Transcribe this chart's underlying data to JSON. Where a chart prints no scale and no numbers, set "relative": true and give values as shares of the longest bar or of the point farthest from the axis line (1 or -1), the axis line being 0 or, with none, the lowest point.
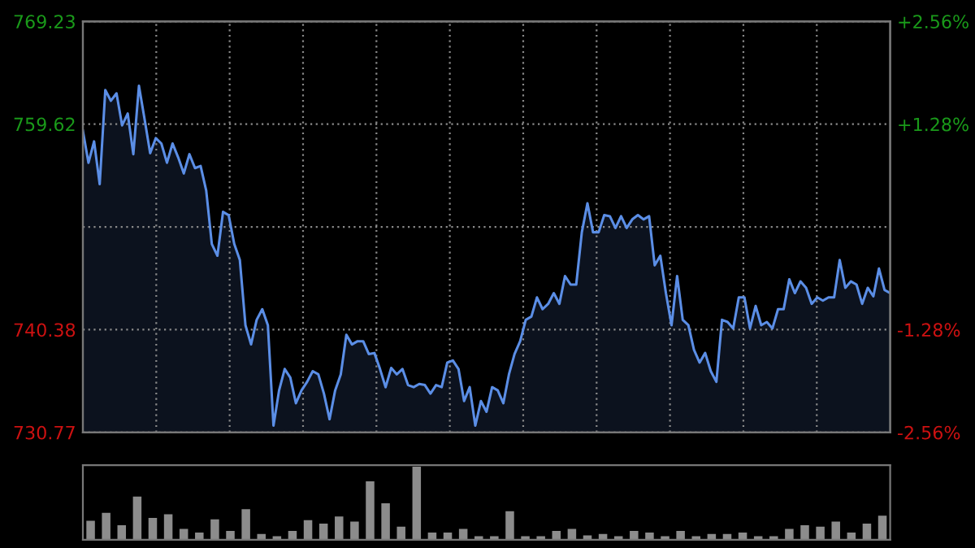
{
  "chart_data": [
    {
      "type": "area",
      "categories": [
        null,
        null,
        null,
        null,
        null,
        null,
        null,
        null,
        null,
        null,
        null,
        null,
        null,
        null,
        null,
        null,
        null,
        null,
        null,
        null,
        null,
        null,
        null,
        null,
        null,
        null,
        null,
        null,
        null,
        null,
        null,
        null,
        null,
        null,
        null,
        null,
        null,
        null,
        null,
        null,
        null,
        null,
        null,
        null,
        null,
        null,
        null,
        null,
        null,
        null,
        null,
        null,
        null,
        null,
        null,
        null,
        null,
        null,
        null,
        null,
        null,
        null,
        null,
        null,
        null,
        null,
        null,
        null,
        null,
        null,
        null,
        null,
        null,
        null,
        null,
        null,
        null,
        null,
        null,
        null,
        null,
        null,
        null,
        null,
        null,
        null,
        null,
        null,
        null,
        null,
        null,
        null,
        null,
        null,
        null,
        null,
        null,
        null,
        null,
        null,
        null,
        null,
        null,
        null,
        null,
        null,
        null,
        null,
        null,
        null,
        null,
        null,
        null,
        null,
        null,
        null,
        null,
        null,
        null,
        null,
        null,
        null,
        null,
        null,
        null,
        null,
        null,
        null,
        null,
        null,
        null,
        null,
        null,
        null,
        null,
        null,
        null,
        null,
        null,
        null,
        null,
        null,
        null,
        null,
        null
      ],
      "series": [
        {
          "color": "#5b8ee6",
          "values": [
            759.0,
            756.0,
            758.0,
            754.0,
            762.8,
            761.8,
            762.5,
            759.5,
            760.6,
            756.8,
            763.2,
            760.1,
            756.9,
            758.3,
            757.8,
            756.0,
            757.8,
            756.5,
            755.0,
            756.8,
            755.5,
            755.7,
            753.4,
            748.4,
            747.3,
            751.4,
            751.1,
            748.4,
            746.9,
            740.8,
            739.0,
            741.3,
            742.3,
            740.8,
            731.4,
            734.7,
            736.7,
            735.9,
            733.5,
            734.7,
            735.5,
            736.5,
            736.2,
            734.4,
            732.0,
            734.7,
            736.2,
            739.9,
            739.0,
            739.3,
            739.3,
            738.1,
            738.2,
            736.7,
            735.0,
            736.8,
            736.2,
            736.7,
            735.2,
            735.0,
            735.3,
            735.2,
            734.4,
            735.2,
            735.0,
            737.3,
            737.5,
            736.7,
            733.7,
            735.0,
            731.4,
            733.7,
            732.7,
            735.0,
            734.7,
            733.5,
            736.2,
            738.1,
            739.3,
            741.3,
            741.6,
            743.4,
            742.3,
            742.8,
            743.8,
            742.8,
            745.4,
            744.6,
            744.6,
            749.5,
            752.2,
            749.5,
            749.5,
            751.1,
            751.0,
            749.9,
            751.0,
            749.9,
            750.7,
            751.1,
            750.7,
            751.0,
            746.4,
            747.3,
            743.8,
            740.8,
            745.4,
            741.3,
            740.8,
            738.5,
            737.3,
            738.2,
            736.5,
            735.5,
            741.3,
            741.1,
            740.5,
            743.4,
            743.4,
            740.5,
            742.6,
            740.8,
            741.1,
            740.5,
            742.3,
            742.3,
            745.1,
            743.8,
            744.9,
            744.3,
            742.8,
            743.4,
            743.1,
            743.4,
            743.4,
            746.9,
            744.3,
            744.9,
            744.6,
            742.8,
            744.3,
            743.5,
            746.1,
            744.1,
            743.8
          ]
        }
      ],
      "ylim": [
        730.77,
        769.23
      ],
      "yticks": [
        730.77,
        740.38,
        {
          "value": 750,
          "label": null
        },
        759.62,
        769.23
      ],
      "y2lim": [
        -2.56,
        2.56
      ],
      "y2ticks": [
        {
          "value": -2.56,
          "label": "-2.56%"
        },
        {
          "value": -1.28,
          "label": "-1.28%"
        },
        {
          "value": 0,
          "label": null
        },
        {
          "value": 1.28,
          "label": "+1.28%"
        },
        {
          "value": 2.56,
          "label": "+2.56%"
        }
      ],
      "grid": true,
      "tick_labels": "y"
    },
    {
      "type": "bar",
      "relative": true,
      "tick_labels": false,
      "categories": [
        null,
        null,
        null,
        null,
        null,
        null,
        null,
        null,
        null,
        null,
        null,
        null,
        null,
        null,
        null,
        null,
        null,
        null,
        null,
        null,
        null,
        null,
        null,
        null,
        null,
        null,
        null,
        null,
        null,
        null,
        null,
        null,
        null,
        null,
        null,
        null,
        null,
        null,
        null,
        null,
        null,
        null,
        null,
        null,
        null,
        null,
        null,
        null,
        null,
        null,
        null,
        null
      ],
      "series": [
        {
          "color": "#8c8c8c",
          "values": [
            0.26,
            0.37,
            0.2,
            0.59,
            0.3,
            0.35,
            0.15,
            0.1,
            0.28,
            0.12,
            0.42,
            0.08,
            0.05,
            0.12,
            0.27,
            0.22,
            0.32,
            0.25,
            0.8,
            0.5,
            0.18,
            1.0,
            0.1,
            0.1,
            0.15,
            0.05,
            0.05,
            0.39,
            0.05,
            0.05,
            0.12,
            0.15,
            0.06,
            0.08,
            0.05,
            0.12,
            0.1,
            0.05,
            0.12,
            0.05,
            0.08,
            0.08,
            0.1,
            0.05,
            0.05,
            0.15,
            0.2,
            0.18,
            0.25,
            0.1,
            0.22,
            0.33
          ]
        }
      ]
    }
  ]
}
